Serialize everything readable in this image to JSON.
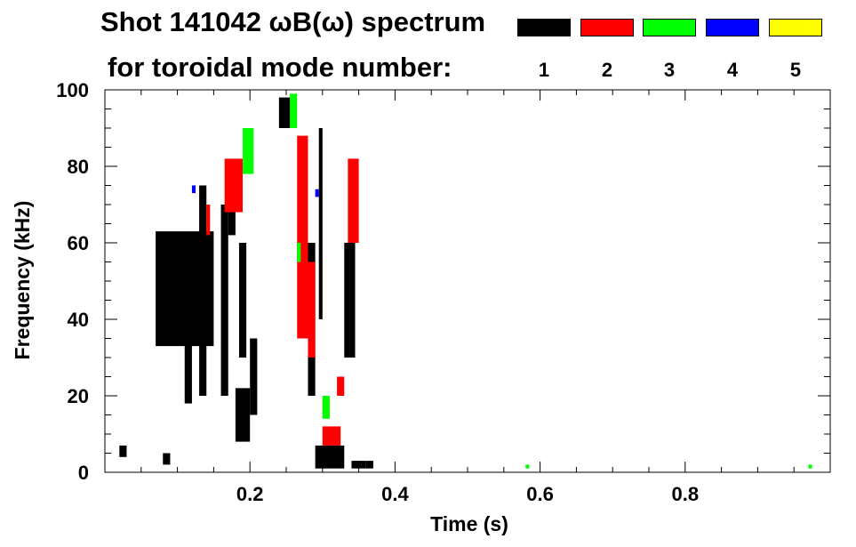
{
  "chart_data": {
    "type": "heatmap",
    "title": "Shot 141042 ωB(ω) spectrum",
    "subtitle": "for toroidal mode number:",
    "xlabel": "Time (s)",
    "ylabel": "Frequency (kHz)",
    "xlim": [
      0.0,
      1.0
    ],
    "ylim": [
      0,
      100
    ],
    "xticks": [
      {
        "value": 0.2,
        "label": "0.2"
      },
      {
        "value": 0.4,
        "label": "0.4"
      },
      {
        "value": 0.6,
        "label": "0.6"
      },
      {
        "value": 0.8,
        "label": "0.8"
      }
    ],
    "yticks": [
      {
        "value": 0,
        "label": "0"
      },
      {
        "value": 20,
        "label": "20"
      },
      {
        "value": 40,
        "label": "40"
      },
      {
        "value": 60,
        "label": "60"
      },
      {
        "value": 80,
        "label": "80"
      },
      {
        "value": 100,
        "label": "100"
      }
    ],
    "grid": false,
    "legend": {
      "position": "top-right",
      "entries": [
        {
          "label": "1",
          "color": "#000000"
        },
        {
          "label": "2",
          "color": "#ff0000"
        },
        {
          "label": "3",
          "color": "#00ff00"
        },
        {
          "label": "4",
          "color": "#0000ff"
        },
        {
          "label": "5",
          "color": "#ffff00"
        }
      ]
    },
    "mode_colors": {
      "1": "#000000",
      "2": "#ff0000",
      "3": "#00ff00",
      "4": "#0000ff",
      "5": "#ffff00"
    },
    "regions": [
      {
        "mode": "1",
        "t": [
          0.07,
          0.15
        ],
        "f": [
          33,
          63
        ]
      },
      {
        "mode": "1",
        "t": [
          0.11,
          0.12
        ],
        "f": [
          18,
          55
        ]
      },
      {
        "mode": "1",
        "t": [
          0.13,
          0.14
        ],
        "f": [
          20,
          75
        ]
      },
      {
        "mode": "1",
        "t": [
          0.16,
          0.17
        ],
        "f": [
          20,
          70
        ]
      },
      {
        "mode": "1",
        "t": [
          0.17,
          0.18
        ],
        "f": [
          62,
          70
        ]
      },
      {
        "mode": "1",
        "t": [
          0.185,
          0.195
        ],
        "f": [
          30,
          60
        ]
      },
      {
        "mode": "1",
        "t": [
          0.18,
          0.2
        ],
        "f": [
          8,
          22
        ]
      },
      {
        "mode": "1",
        "t": [
          0.2,
          0.21
        ],
        "f": [
          15,
          35
        ]
      },
      {
        "mode": "1",
        "t": [
          0.24,
          0.26
        ],
        "f": [
          90,
          98
        ]
      },
      {
        "mode": "1",
        "t": [
          0.28,
          0.29
        ],
        "f": [
          20,
          60
        ]
      },
      {
        "mode": "1",
        "t": [
          0.295,
          0.3
        ],
        "f": [
          40,
          90
        ]
      },
      {
        "mode": "1",
        "t": [
          0.29,
          0.33
        ],
        "f": [
          1,
          7
        ]
      },
      {
        "mode": "1",
        "t": [
          0.33,
          0.345
        ],
        "f": [
          30,
          60
        ]
      },
      {
        "mode": "1",
        "t": [
          0.34,
          0.36
        ],
        "f": [
          1,
          3
        ]
      },
      {
        "mode": "1",
        "t": [
          0.36,
          0.37
        ],
        "f": [
          1,
          3
        ]
      },
      {
        "mode": "1",
        "t": [
          0.02,
          0.03
        ],
        "f": [
          4,
          7
        ]
      },
      {
        "mode": "1",
        "t": [
          0.08,
          0.09
        ],
        "f": [
          2,
          5
        ]
      },
      {
        "mode": "2",
        "t": [
          0.165,
          0.19
        ],
        "f": [
          68,
          82
        ]
      },
      {
        "mode": "2",
        "t": [
          0.14,
          0.145
        ],
        "f": [
          62,
          70
        ]
      },
      {
        "mode": "2",
        "t": [
          0.265,
          0.28
        ],
        "f": [
          35,
          88
        ]
      },
      {
        "mode": "2",
        "t": [
          0.28,
          0.29
        ],
        "f": [
          30,
          55
        ]
      },
      {
        "mode": "2",
        "t": [
          0.335,
          0.35
        ],
        "f": [
          60,
          82
        ]
      },
      {
        "mode": "2",
        "t": [
          0.3,
          0.325
        ],
        "f": [
          7,
          12
        ]
      },
      {
        "mode": "2",
        "t": [
          0.32,
          0.33
        ],
        "f": [
          20,
          25
        ]
      },
      {
        "mode": "3",
        "t": [
          0.19,
          0.205
        ],
        "f": [
          78,
          90
        ]
      },
      {
        "mode": "3",
        "t": [
          0.255,
          0.265
        ],
        "f": [
          90,
          99
        ]
      },
      {
        "mode": "3",
        "t": [
          0.3,
          0.31
        ],
        "f": [
          14,
          20
        ]
      },
      {
        "mode": "3",
        "t": [
          0.265,
          0.27
        ],
        "f": [
          55,
          60
        ]
      },
      {
        "mode": "4",
        "t": [
          0.29,
          0.295
        ],
        "f": [
          72,
          74
        ]
      },
      {
        "mode": "4",
        "t": [
          0.12,
          0.125
        ],
        "f": [
          73,
          75
        ]
      },
      {
        "mode": "3",
        "t": [
          0.58,
          0.585
        ],
        "f": [
          1,
          2
        ]
      },
      {
        "mode": "3",
        "t": [
          0.97,
          0.975
        ],
        "f": [
          1,
          2
        ]
      }
    ]
  }
}
